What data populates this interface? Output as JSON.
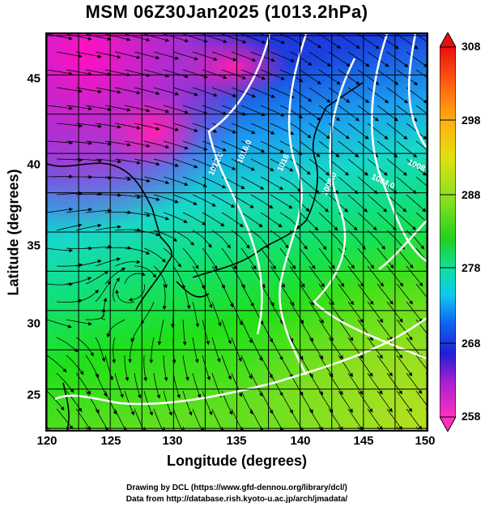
{
  "title": "MSM 06Z30Jan2025 (1013.2hPa)",
  "xlabel": "Longitude (degrees)",
  "ylabel": "Latitude  (degrees)",
  "credits": {
    "line1": "Drawing by DCL (https://www.gfd-dennou.org/library/dcl/)",
    "line2": "Data from http://database.rish.kyoto-u.ac.jp/arch/jmadata/"
  },
  "x_ticks": [
    "120",
    "125",
    "130",
    "135",
    "140",
    "145",
    "150"
  ],
  "y_ticks": [
    "45",
    "40",
    "35",
    "30",
    "25"
  ],
  "colorbar": {
    "ticks": [
      "308",
      "298",
      "288",
      "278",
      "268",
      "258"
    ],
    "range": [
      258,
      308
    ]
  },
  "chart_data": {
    "type": "heatmap",
    "xlim": [
      120,
      150
    ],
    "ylim": [
      22.4,
      47.6
    ],
    "grid": true,
    "contour_labels": [
      "1012.0",
      "1016.0",
      "1016",
      "1008.0",
      "1004.0",
      "1008"
    ]
  }
}
